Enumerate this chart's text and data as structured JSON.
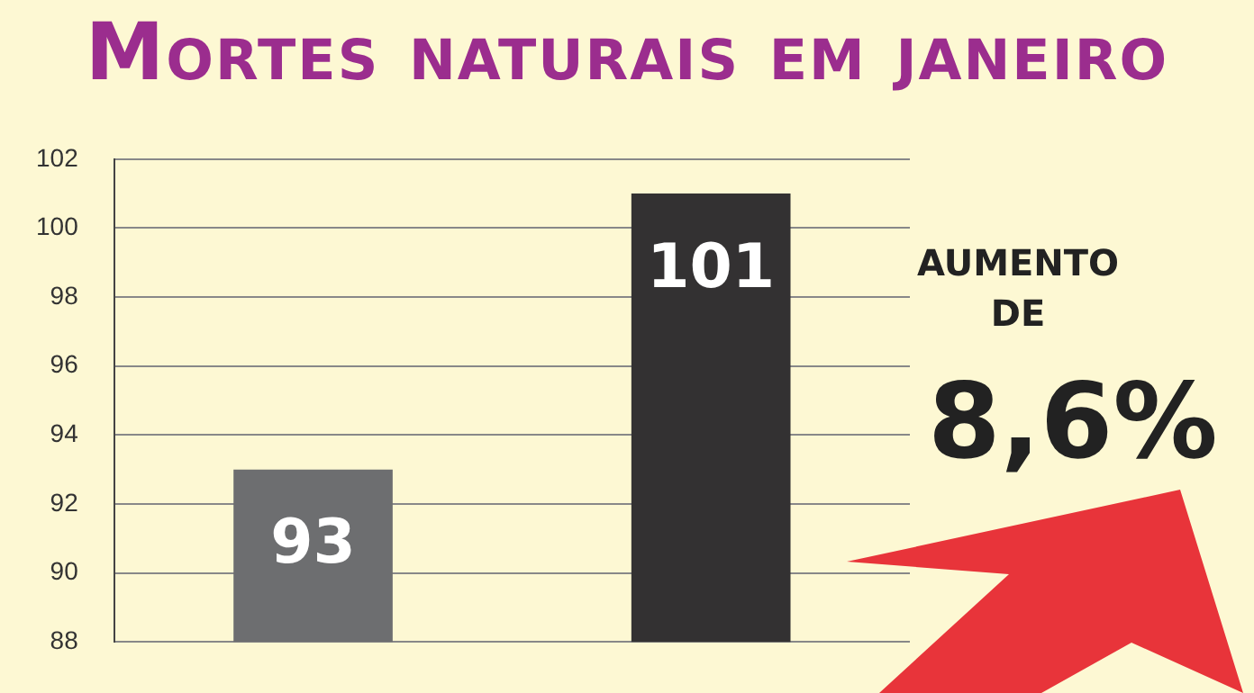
{
  "chart_data": {
    "type": "bar",
    "title": "Mortes naturais em janeiro",
    "categories": [
      null,
      null
    ],
    "values": [
      93,
      101
    ],
    "colors": [
      "#6d6e70",
      "#333132"
    ],
    "ylim": [
      88,
      102
    ],
    "yticks": [
      88,
      90,
      92,
      94,
      96,
      98,
      100,
      102
    ],
    "grid": "y",
    "legend": false,
    "data_labels": true,
    "annotations": [
      "AUMENTO DE",
      "8,6%"
    ]
  }
}
